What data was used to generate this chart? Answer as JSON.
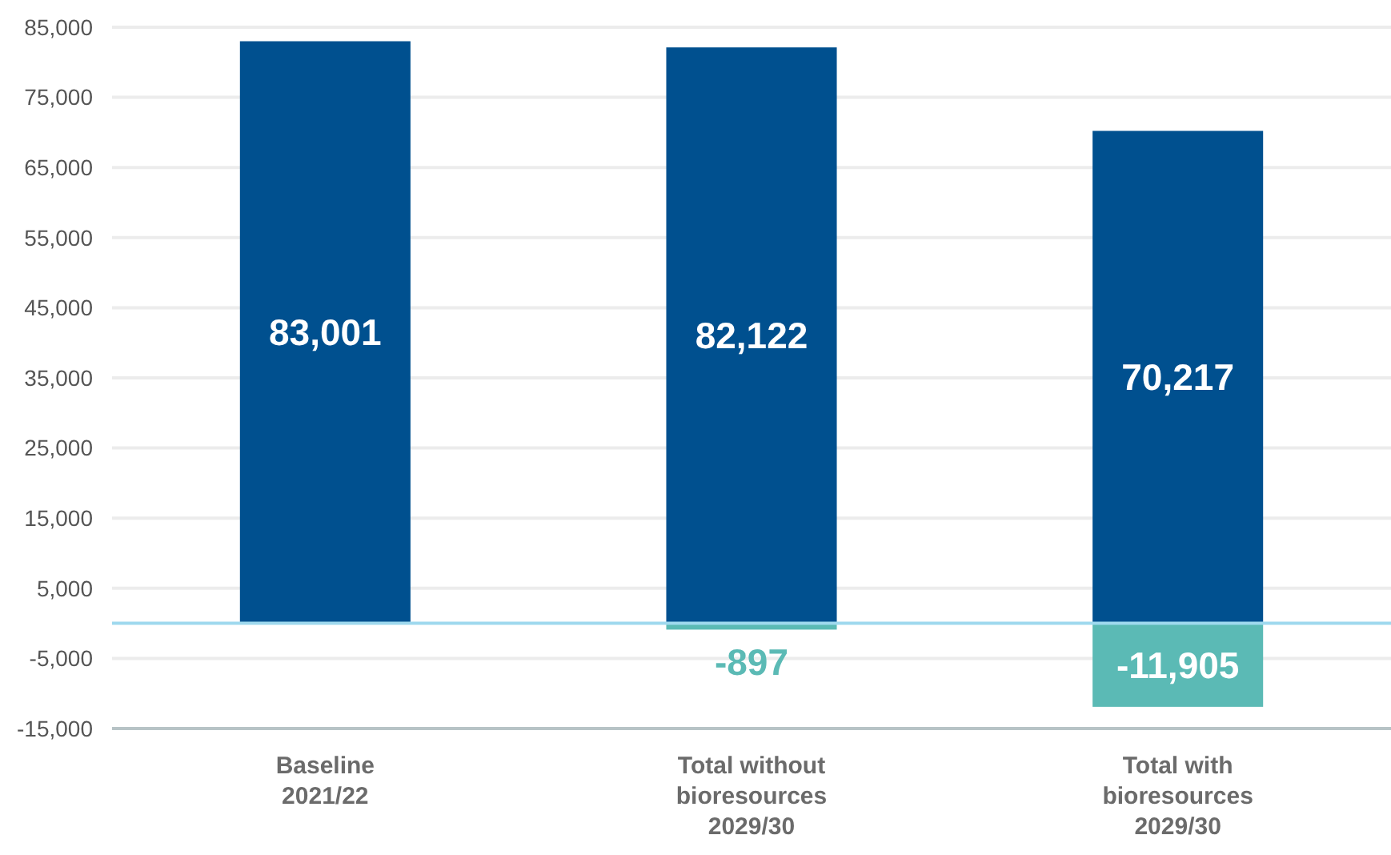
{
  "chart_data": {
    "type": "bar",
    "stacked": true,
    "categories": [
      "Baseline\n2021/22",
      "Total without\nbioresources\n2029/30",
      "Total with\nbioresources\n2029/30"
    ],
    "series": [
      {
        "color": "#00508f",
        "values": [
          83001,
          82122,
          70217
        ],
        "value_labels": [
          "83,001",
          "82,122",
          "70,217"
        ]
      },
      {
        "color": "#5bbab5",
        "values": [
          null,
          -897,
          -11905
        ],
        "value_labels": [
          null,
          "-897",
          "-11,905"
        ]
      }
    ],
    "ylim": [
      -15000,
      85000
    ],
    "yticks": [
      {
        "value": -15000,
        "label": "-15,000"
      },
      {
        "value": -5000,
        "label": "-5,000"
      },
      {
        "value": 5000,
        "label": "5,000"
      },
      {
        "value": 15000,
        "label": "15,000"
      },
      {
        "value": 25000,
        "label": "25,000"
      },
      {
        "value": 35000,
        "label": "35,000"
      },
      {
        "value": 45000,
        "label": "45,000"
      },
      {
        "value": 55000,
        "label": "55,000"
      },
      {
        "value": 65000,
        "label": "65,000"
      },
      {
        "value": 75000,
        "label": "75,000"
      },
      {
        "value": 85000,
        "label": "85,000"
      }
    ],
    "grid": "y",
    "ref_lines": [
      {
        "axis": "y",
        "value": 0,
        "color": "#9fd9ee"
      }
    ]
  }
}
